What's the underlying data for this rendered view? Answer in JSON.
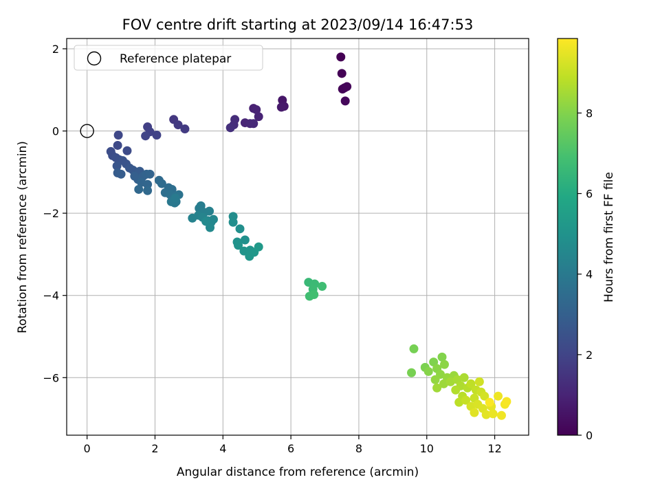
{
  "chart_data": {
    "type": "scatter",
    "title": "FOV centre drift starting at 2023/09/14 16:47:53",
    "xlabel": "Angular distance from reference (arcmin)",
    "ylabel": "Rotation from reference (arcmin)",
    "xlim": [
      -0.6,
      13.0
    ],
    "ylim": [
      -7.4,
      2.25
    ],
    "xticks": [
      0,
      2,
      4,
      6,
      8,
      10,
      12
    ],
    "yticks": [
      -6,
      -4,
      -2,
      0,
      2
    ],
    "grid": true,
    "legend": {
      "position": "upper-left",
      "entries": [
        "Reference platepar"
      ]
    },
    "colorbar": {
      "label": "Hours from first FF file",
      "colormap": "viridis",
      "range": [
        0,
        9.85
      ],
      "ticks": [
        0,
        2,
        4,
        6,
        8
      ]
    },
    "reference_point": {
      "x": 0,
      "y": 0
    },
    "points": [
      [
        7.47,
        1.8,
        0.0
      ],
      [
        7.5,
        1.4,
        0.05
      ],
      [
        7.52,
        1.02,
        0.1
      ],
      [
        7.58,
        1.05,
        0.12
      ],
      [
        7.65,
        1.08,
        0.15
      ],
      [
        7.6,
        0.73,
        0.2
      ],
      [
        5.75,
        0.75,
        0.6
      ],
      [
        5.8,
        0.6,
        0.65
      ],
      [
        5.72,
        0.58,
        0.7
      ],
      [
        4.9,
        0.55,
        0.9
      ],
      [
        4.98,
        0.52,
        0.95
      ],
      [
        5.05,
        0.35,
        1.0
      ],
      [
        4.65,
        0.2,
        1.05
      ],
      [
        4.8,
        0.18,
        1.1
      ],
      [
        4.9,
        0.18,
        1.15
      ],
      [
        4.35,
        0.28,
        1.25
      ],
      [
        4.32,
        0.15,
        1.3
      ],
      [
        4.22,
        0.08,
        1.35
      ],
      [
        2.55,
        0.28,
        1.6
      ],
      [
        2.68,
        0.15,
        1.65
      ],
      [
        2.88,
        0.05,
        1.7
      ],
      [
        1.78,
        0.1,
        1.85
      ],
      [
        1.85,
        -0.02,
        1.9
      ],
      [
        2.05,
        -0.1,
        1.95
      ],
      [
        1.72,
        -0.12,
        2.0
      ],
      [
        0.92,
        -0.1,
        2.1
      ],
      [
        0.9,
        -0.35,
        2.2
      ],
      [
        1.18,
        -0.48,
        2.25
      ],
      [
        0.7,
        -0.5,
        2.3
      ],
      [
        0.75,
        -0.6,
        2.35
      ],
      [
        0.85,
        -0.65,
        2.4
      ],
      [
        0.95,
        -0.7,
        2.45
      ],
      [
        1.05,
        -0.72,
        2.5
      ],
      [
        1.15,
        -0.8,
        2.55
      ],
      [
        0.88,
        -0.85,
        2.6
      ],
      [
        1.25,
        -0.9,
        2.65
      ],
      [
        1.35,
        -0.95,
        2.7
      ],
      [
        1.45,
        -1.0,
        2.75
      ],
      [
        1.55,
        -0.98,
        2.8
      ],
      [
        0.9,
        -1.02,
        2.85
      ],
      [
        1.0,
        -1.05,
        2.9
      ],
      [
        1.4,
        -1.1,
        2.95
      ],
      [
        1.5,
        -1.18,
        3.0
      ],
      [
        1.65,
        -1.1,
        3.05
      ],
      [
        1.75,
        -1.05,
        3.1
      ],
      [
        1.85,
        -1.05,
        3.15
      ],
      [
        1.6,
        -1.25,
        3.2
      ],
      [
        1.78,
        -1.3,
        3.25
      ],
      [
        1.52,
        -1.42,
        3.3
      ],
      [
        1.78,
        -1.45,
        3.35
      ],
      [
        2.12,
        -1.2,
        3.4
      ],
      [
        2.2,
        -1.28,
        3.45
      ],
      [
        2.4,
        -1.38,
        3.5
      ],
      [
        2.5,
        -1.42,
        3.55
      ],
      [
        2.3,
        -1.5,
        3.6
      ],
      [
        2.45,
        -1.55,
        3.65
      ],
      [
        2.6,
        -1.58,
        3.7
      ],
      [
        2.7,
        -1.55,
        3.75
      ],
      [
        2.52,
        -1.68,
        3.8
      ],
      [
        2.62,
        -1.72,
        3.85
      ],
      [
        2.58,
        -1.75,
        3.9
      ],
      [
        2.48,
        -1.72,
        3.95
      ],
      [
        2.6,
        -1.63,
        4.0
      ],
      [
        3.3,
        -1.88,
        4.1
      ],
      [
        3.35,
        -1.82,
        4.15
      ],
      [
        3.45,
        -1.98,
        4.2
      ],
      [
        3.6,
        -1.95,
        4.25
      ],
      [
        3.28,
        -2.05,
        4.3
      ],
      [
        3.1,
        -2.12,
        4.35
      ],
      [
        3.4,
        -2.1,
        4.4
      ],
      [
        3.55,
        -2.18,
        4.45
      ],
      [
        3.65,
        -2.22,
        4.5
      ],
      [
        3.72,
        -2.15,
        4.55
      ],
      [
        3.62,
        -2.35,
        4.6
      ],
      [
        3.5,
        -2.2,
        4.65
      ],
      [
        4.3,
        -2.08,
        4.75
      ],
      [
        4.3,
        -2.22,
        4.8
      ],
      [
        4.5,
        -2.38,
        4.85
      ],
      [
        4.65,
        -2.65,
        4.9
      ],
      [
        4.42,
        -2.7,
        4.95
      ],
      [
        4.45,
        -2.78,
        5.0
      ],
      [
        4.62,
        -2.92,
        5.05
      ],
      [
        4.8,
        -2.9,
        5.1
      ],
      [
        4.78,
        -3.05,
        5.15
      ],
      [
        4.92,
        -2.95,
        5.2
      ],
      [
        5.05,
        -2.82,
        5.25
      ],
      [
        6.52,
        -3.68,
        6.6
      ],
      [
        6.7,
        -3.72,
        6.65
      ],
      [
        6.65,
        -3.85,
        6.7
      ],
      [
        6.92,
        -3.78,
        6.75
      ],
      [
        6.55,
        -4.02,
        6.8
      ],
      [
        6.68,
        -3.98,
        6.85
      ],
      [
        9.62,
        -5.3,
        7.8
      ],
      [
        9.55,
        -5.88,
        7.85
      ],
      [
        9.95,
        -5.75,
        7.9
      ],
      [
        10.2,
        -5.62,
        7.95
      ],
      [
        10.45,
        -5.5,
        8.0
      ],
      [
        10.05,
        -5.85,
        8.05
      ],
      [
        10.3,
        -5.78,
        8.1
      ],
      [
        10.52,
        -5.68,
        8.15
      ],
      [
        10.4,
        -5.92,
        8.2
      ],
      [
        10.25,
        -6.05,
        8.25
      ],
      [
        10.6,
        -6.0,
        8.3
      ],
      [
        10.8,
        -5.95,
        8.35
      ],
      [
        10.5,
        -6.15,
        8.4
      ],
      [
        10.3,
        -6.25,
        8.45
      ],
      [
        10.7,
        -6.1,
        8.5
      ],
      [
        10.9,
        -6.05,
        8.55
      ],
      [
        11.1,
        -6.0,
        8.6
      ],
      [
        11.0,
        -6.2,
        8.65
      ],
      [
        10.85,
        -6.3,
        8.7
      ],
      [
        11.2,
        -6.25,
        8.75
      ],
      [
        11.05,
        -6.45,
        8.8
      ],
      [
        10.95,
        -6.6,
        8.85
      ],
      [
        11.3,
        -6.15,
        8.9
      ],
      [
        11.45,
        -6.3,
        8.95
      ],
      [
        11.15,
        -6.55,
        9.0
      ],
      [
        11.4,
        -6.5,
        9.05
      ],
      [
        11.6,
        -6.35,
        9.1
      ],
      [
        11.55,
        -6.1,
        9.15
      ],
      [
        11.7,
        -6.45,
        9.2
      ],
      [
        11.3,
        -6.7,
        9.25
      ],
      [
        11.5,
        -6.65,
        9.3
      ],
      [
        11.65,
        -6.75,
        9.35
      ],
      [
        11.4,
        -6.85,
        9.4
      ],
      [
        11.75,
        -6.9,
        9.45
      ],
      [
        11.9,
        -6.7,
        9.5
      ],
      [
        11.95,
        -6.88,
        9.55
      ],
      [
        12.1,
        -6.45,
        9.6
      ],
      [
        12.2,
        -6.92,
        9.65
      ],
      [
        12.3,
        -6.65,
        9.7
      ],
      [
        12.35,
        -6.58,
        9.75
      ],
      [
        11.85,
        -6.6,
        9.8
      ]
    ]
  }
}
